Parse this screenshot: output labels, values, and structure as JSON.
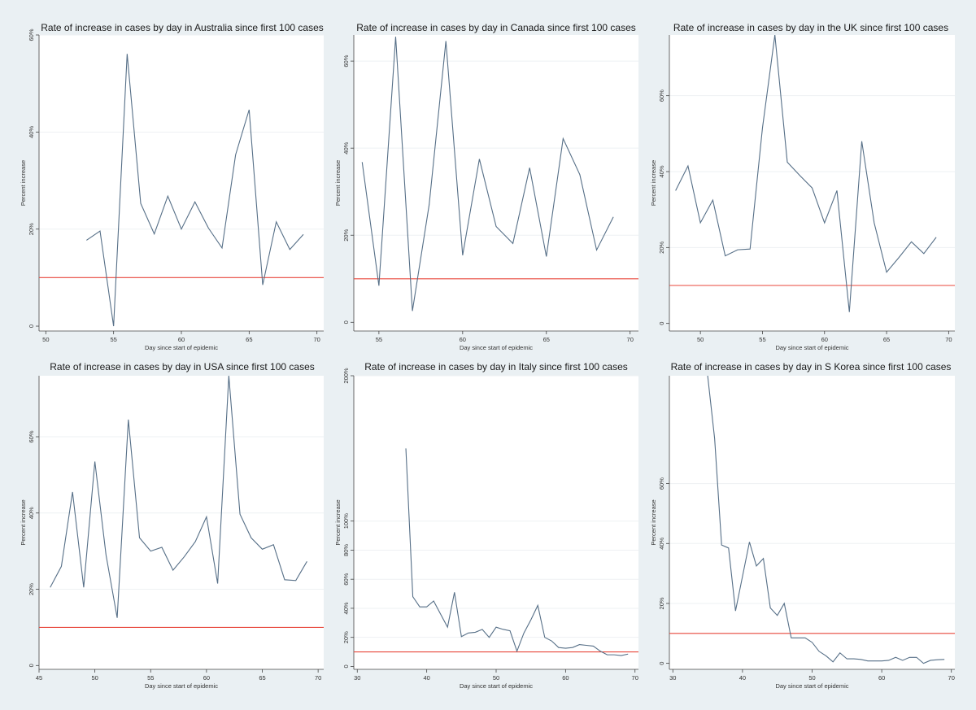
{
  "colors": {
    "background": "#eaf0f3",
    "plot_bg": "#ffffff",
    "line": "#566f87",
    "threshold": "#e8473b",
    "grid": "#eef1f3"
  },
  "chart_data": [
    {
      "type": "line",
      "title": "Rate of increase in cases by day in Australia since first 100 cases",
      "xlabel": "Day since start of epidemic",
      "ylabel": "Percent increase",
      "xlim": [
        49.5,
        70.5
      ],
      "ylim": [
        -1,
        60
      ],
      "xticks": [
        50,
        55,
        60,
        65,
        70
      ],
      "yticks": [
        0,
        20,
        40,
        60
      ],
      "ytick_labels": [
        "0",
        "20%",
        "40%",
        "60%"
      ],
      "threshold": 10,
      "x": [
        53,
        54,
        55,
        56,
        57,
        58,
        59,
        60,
        61,
        62,
        63,
        64,
        65,
        66,
        67,
        68,
        69
      ],
      "y": [
        17.7,
        19.6,
        0,
        56.1,
        25.3,
        19,
        26.8,
        20,
        25.6,
        20.2,
        16.1,
        35.3,
        44.6,
        8.5,
        21.5,
        15.8,
        18.9
      ]
    },
    {
      "type": "line",
      "title": "Rate of increase in cases by day in Canada since first 100 cases",
      "xlabel": "Day since start of epidemic",
      "ylabel": "Percent increase",
      "xlim": [
        53.5,
        70.5
      ],
      "ylim": [
        -2,
        66
      ],
      "xticks": [
        55,
        60,
        65,
        70
      ],
      "yticks": [
        0,
        20,
        40,
        60
      ],
      "ytick_labels": [
        "0",
        "20%",
        "40%",
        "60%"
      ],
      "threshold": 10,
      "x": [
        54,
        55,
        56,
        57,
        58,
        59,
        60,
        61,
        62,
        63,
        64,
        65,
        66,
        67,
        68,
        69
      ],
      "y": [
        36.8,
        8.4,
        65.6,
        2.6,
        27,
        64.6,
        15.4,
        37.5,
        22,
        18.1,
        35.5,
        15.1,
        42.2,
        33.9,
        16.6,
        24.2
      ]
    },
    {
      "type": "line",
      "title": "Rate of increase in cases by day in the UK since first 100 cases",
      "xlabel": "Day since start of epidemic",
      "ylabel": "Percent increase",
      "xlim": [
        47.5,
        70.5
      ],
      "ylim": [
        -2,
        76
      ],
      "xticks": [
        50,
        55,
        60,
        65,
        70
      ],
      "yticks": [
        0,
        20,
        40,
        60
      ],
      "ytick_labels": [
        "0",
        "20%",
        "40%",
        "60%"
      ],
      "threshold": 10,
      "x": [
        48,
        49,
        50,
        51,
        52,
        53,
        54,
        55,
        56,
        57,
        58,
        59,
        60,
        61,
        62,
        63,
        64,
        65,
        66,
        67,
        68,
        69
      ],
      "y": [
        35,
        41.5,
        26.5,
        32.5,
        17.8,
        19.4,
        19.6,
        51.5,
        76,
        42.5,
        39,
        35.7,
        26.5,
        35,
        3,
        48,
        26.5,
        13.5,
        17.4,
        21.5,
        18.4,
        22.7
      ]
    },
    {
      "type": "line",
      "title": "Rate of increase in cases by day in USA since first 100 cases",
      "xlabel": "Day since start of epidemic",
      "ylabel": "Percent increase",
      "xlim": [
        45,
        70.5
      ],
      "ylim": [
        -1,
        76
      ],
      "xticks": [
        45,
        50,
        55,
        60,
        65,
        70
      ],
      "yticks": [
        0,
        20,
        40,
        60
      ],
      "ytick_labels": [
        "0",
        "20%",
        "40%",
        "60%"
      ],
      "threshold": 10,
      "x": [
        46,
        47,
        48,
        49,
        50,
        51,
        52,
        53,
        54,
        55,
        56,
        57,
        58,
        59,
        60,
        61,
        62,
        63,
        64,
        65,
        66,
        67,
        68,
        69
      ],
      "y": [
        20.5,
        26,
        45.5,
        20.5,
        53.5,
        29,
        12.5,
        64.5,
        33.5,
        30,
        31,
        25,
        28.5,
        32.5,
        39,
        21.5,
        76,
        39.7,
        33.5,
        30.5,
        31.7,
        22.5,
        22.3,
        27.3
      ]
    },
    {
      "type": "line",
      "title": "Rate of increase in cases by day in Italy since first 100 cases",
      "xlabel": "Day since start of epidemic",
      "ylabel": "Percent increase",
      "xlim": [
        29.5,
        70.5
      ],
      "ylim": [
        -2,
        200
      ],
      "xticks": [
        30,
        40,
        50,
        60,
        70
      ],
      "yticks": [
        0,
        20,
        40,
        60,
        80,
        100,
        200
      ],
      "ytick_labels": [
        "0",
        "20%",
        "40%",
        "60%",
        "80%",
        "100%",
        "200%"
      ],
      "threshold": 10,
      "x": [
        37,
        38,
        39,
        40,
        41,
        42,
        43,
        44,
        45,
        46,
        47,
        48,
        49,
        50,
        51,
        52,
        53,
        54,
        55,
        56,
        57,
        58,
        59,
        60,
        61,
        62,
        63,
        64,
        65,
        66,
        67,
        68,
        69
      ],
      "y": [
        150,
        48,
        41,
        41,
        45,
        36,
        27,
        51,
        20.5,
        23,
        23.5,
        25.5,
        20,
        27,
        25.5,
        24.5,
        10.5,
        23,
        32,
        42,
        20,
        17.5,
        13,
        12.5,
        13,
        15,
        14.5,
        14,
        10.5,
        8,
        8,
        7.5,
        8.5
      ]
    },
    {
      "type": "line",
      "title": "Rate of increase in cases by day in S Korea since first 100 cases",
      "xlabel": "Day since start of epidemic",
      "ylabel": "Percent increase",
      "xlim": [
        29.5,
        70.5
      ],
      "ylim": [
        -2,
        96
      ],
      "xticks": [
        30,
        40,
        50,
        60,
        70
      ],
      "yticks": [
        0,
        20,
        40,
        60
      ],
      "ytick_labels": [
        "0",
        "20%",
        "40%",
        "60%"
      ],
      "threshold": 10,
      "x": [
        35,
        36,
        37,
        38,
        39,
        40,
        41,
        42,
        43,
        44,
        45,
        46,
        47,
        48,
        49,
        50,
        51,
        52,
        53,
        54,
        55,
        56,
        57,
        58,
        59,
        60,
        61,
        62,
        63,
        64,
        65,
        66,
        67,
        68,
        69
      ],
      "y": [
        96,
        75,
        39.5,
        38.5,
        17.5,
        29,
        40.5,
        32.5,
        35,
        18.5,
        16,
        20,
        8.5,
        8.5,
        8.5,
        7,
        4,
        2.5,
        0.5,
        3.5,
        1.5,
        1.5,
        1.3,
        0.8,
        0.8,
        0.8,
        1,
        2,
        1,
        2,
        2,
        0,
        1,
        1.2,
        1.3
      ]
    }
  ]
}
